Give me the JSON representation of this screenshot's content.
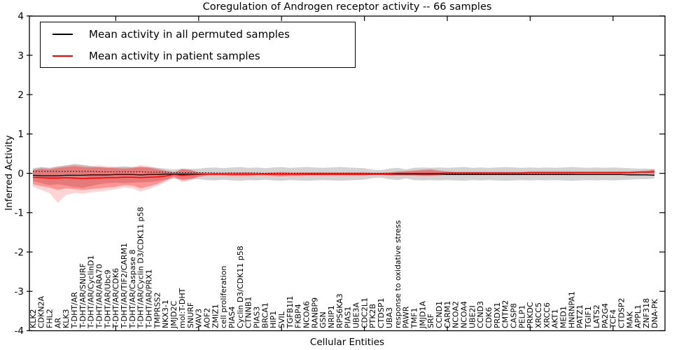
{
  "title": "Coregulation of Androgen receptor activity -- 66 samples",
  "axes": {
    "xlabel": "Cellular Entities",
    "ylabel": "Inferred Activity",
    "ytick_labels": [
      "4",
      "3",
      "2",
      "1",
      "0",
      "-1",
      "-2",
      "-3",
      "-4"
    ],
    "ytick_values": [
      4,
      3,
      2,
      1,
      0,
      -1,
      -2,
      -3,
      -4
    ],
    "ylim": [
      -4,
      4
    ],
    "x_major_tick_every": 10
  },
  "legend": {
    "entries": [
      {
        "label": "Mean activity in all permuted samples",
        "color": "#000000"
      },
      {
        "label": "Mean activity in patient samples",
        "color": "#ff0000"
      }
    ]
  },
  "chart_data": {
    "type": "line",
    "title": "Coregulation of Androgen receptor activity -- 66 samples",
    "xlabel": "Cellular Entities",
    "ylabel": "Inferred Activity",
    "ylim": [
      -4,
      4
    ],
    "grid": false,
    "legend_position": "upper left",
    "n_categories": 76,
    "categories": [
      "KLK2",
      "CDKN2A",
      "FHL2",
      "AR",
      "KLK3",
      "T-DHT/AR",
      "T-DHT/AR/SNURF",
      "T-DHT/AR/CyclinD1",
      "T-DHT/AR/ARA70",
      "T-DHT/AR/Ubc9",
      "T-DHT/AR/CDK6",
      "T-DHT/AR/TIF2/CARM1",
      "T-DHT/AR/Caspase 8",
      "T-DHT/AR/Cyclin D3/CDK11 p58",
      "T-DHT/AR/PRX1",
      "TMPRSS2",
      "NKX3-1",
      "JMJD2C",
      "mol:T-DHT",
      "SNURF",
      "VAV3",
      "AOF2",
      "ZMIZ1",
      "cell proliferation",
      "PIAS4",
      "Cyclin D3/CDK11 p58",
      "CTNNB1",
      "PIAS3",
      "BRCA1",
      "HIP1",
      "SVIL",
      "TGFB1I1",
      "FKBP4",
      "NCOA6",
      "RANBP9",
      "GSN",
      "NRIP1",
      "RPS6KA3",
      "PIAS1",
      "UBE3A",
      "CDC2L1",
      "PTK2B",
      "CTDSP1",
      "UBA3",
      "response to oxidative stress",
      "PAWR",
      "TMF1",
      "JMJD1A",
      "SRF",
      "CCND1",
      "CARM1",
      "NCOA2",
      "NCOA4",
      "UBE2I",
      "CCND3",
      "CDK6",
      "PRDX1",
      "CMTM2",
      "CASP8",
      "PELP1",
      "PRKDC",
      "XRCC5",
      "XRCC6",
      "AKT1",
      "MED1",
      "HNRNPA1",
      "PATZ1",
      "TGIF1",
      "LATS2",
      "PA2G4",
      "TCF4",
      "CTDSP2",
      "MAK",
      "APPL1",
      "ZNF318",
      "DNA-PK"
    ],
    "series": [
      {
        "name": "Mean activity in all permuted samples",
        "color": "#000000",
        "style": "solid",
        "values": [
          -0.05,
          -0.06,
          -0.06,
          -0.06,
          -0.05,
          -0.05,
          -0.05,
          -0.04,
          -0.04,
          -0.04,
          -0.03,
          -0.03,
          -0.03,
          -0.04,
          -0.03,
          -0.03,
          -0.02,
          -0.02,
          -0.02,
          -0.02,
          -0.02,
          -0.02,
          -0.02,
          -0.02,
          -0.02,
          -0.02,
          -0.02,
          -0.02,
          -0.02,
          -0.02,
          -0.02,
          -0.02,
          -0.02,
          -0.02,
          -0.02,
          -0.02,
          -0.02,
          -0.02,
          -0.02,
          -0.02,
          -0.02,
          -0.02,
          -0.02,
          -0.02,
          -0.02,
          -0.02,
          -0.02,
          -0.02,
          -0.02,
          -0.02,
          -0.03,
          -0.03,
          -0.03,
          -0.03,
          -0.03,
          -0.03,
          -0.03,
          -0.03,
          -0.03,
          -0.03,
          -0.03,
          -0.03,
          -0.03,
          -0.03,
          -0.03,
          -0.03,
          -0.03,
          -0.03,
          -0.03,
          -0.03,
          -0.03,
          -0.03,
          -0.04,
          -0.04,
          -0.04,
          -0.05
        ]
      },
      {
        "name": "Zero reference (dotted)",
        "color": "#000000",
        "style": "dotted",
        "values": [
          0.05,
          0.05,
          0.05,
          0.05,
          0.05,
          0.05,
          0.05,
          0.05,
          0.04,
          0.04,
          0.04,
          0.04,
          0.04,
          0.04,
          0.03,
          0.03,
          0.03,
          0.02,
          0.02,
          0.02,
          0.02,
          0.02,
          0.01,
          0.01,
          0.01,
          0.01,
          0.01,
          0.01,
          0.0,
          0.0,
          0.0,
          0.0,
          0.0,
          0.0,
          0.0,
          0.0,
          0.0,
          0.0,
          0.0,
          0.0,
          0.0,
          0.0,
          0.0,
          0.0,
          -0.01,
          -0.01,
          -0.01,
          -0.01,
          -0.01,
          -0.01,
          -0.01,
          -0.01,
          -0.01,
          -0.01,
          -0.01,
          -0.02,
          -0.02,
          -0.02,
          -0.02,
          -0.02,
          -0.02,
          -0.02,
          -0.02,
          -0.02,
          -0.02,
          -0.02,
          -0.03,
          -0.03,
          -0.03,
          -0.03,
          -0.03,
          -0.03,
          -0.03,
          -0.03,
          -0.04,
          -0.04
        ]
      },
      {
        "name": "Permuted samples std band",
        "color": "rgba(130,130,130,0.35)",
        "upper": [
          0.13,
          0.16,
          0.14,
          0.17,
          0.2,
          0.24,
          0.22,
          0.18,
          0.16,
          0.15,
          0.16,
          0.18,
          0.16,
          0.15,
          0.16,
          0.14,
          0.12,
          0.1,
          0.12,
          0.11,
          0.12,
          0.14,
          0.15,
          0.13,
          0.15,
          0.16,
          0.14,
          0.15,
          0.13,
          0.15,
          0.16,
          0.14,
          0.15,
          0.16,
          0.15,
          0.14,
          0.15,
          0.16,
          0.15,
          0.14,
          0.13,
          0.09,
          0.08,
          0.12,
          0.14,
          0.1,
          0.14,
          0.15,
          0.14,
          0.15,
          0.14,
          0.15,
          0.16,
          0.14,
          0.15,
          0.14,
          0.15,
          0.16,
          0.15,
          0.14,
          0.15,
          0.14,
          0.15,
          0.14,
          0.15,
          0.16,
          0.15,
          0.14,
          0.15,
          0.14,
          0.15,
          0.14,
          0.13,
          0.12,
          0.12,
          0.1
        ],
        "lower": [
          -0.2,
          -0.25,
          -0.3,
          -0.28,
          -0.31,
          -0.35,
          -0.37,
          -0.32,
          -0.28,
          -0.25,
          -0.24,
          -0.25,
          -0.24,
          -0.23,
          -0.22,
          -0.2,
          -0.16,
          -0.14,
          -0.15,
          -0.14,
          -0.15,
          -0.17,
          -0.18,
          -0.16,
          -0.18,
          -0.19,
          -0.17,
          -0.18,
          -0.16,
          -0.18,
          -0.19,
          -0.17,
          -0.18,
          -0.19,
          -0.18,
          -0.17,
          -0.18,
          -0.19,
          -0.18,
          -0.17,
          -0.16,
          -0.12,
          -0.11,
          -0.15,
          -0.17,
          -0.13,
          -0.17,
          -0.18,
          -0.17,
          -0.18,
          -0.17,
          -0.18,
          -0.19,
          -0.17,
          -0.18,
          -0.17,
          -0.18,
          -0.19,
          -0.18,
          -0.17,
          -0.18,
          -0.17,
          -0.18,
          -0.17,
          -0.18,
          -0.19,
          -0.18,
          -0.17,
          -0.18,
          -0.17,
          -0.18,
          -0.17,
          -0.16,
          -0.15,
          -0.15,
          -0.13
        ]
      },
      {
        "name": "Mean activity in patient samples",
        "color": "#ff0000",
        "style": "solid",
        "values": [
          -0.1,
          -0.11,
          -0.12,
          -0.12,
          -0.11,
          -0.12,
          -0.13,
          -0.12,
          -0.12,
          -0.11,
          -0.11,
          -0.1,
          -0.1,
          -0.11,
          -0.1,
          -0.09,
          -0.07,
          -0.03,
          -0.05,
          -0.04,
          -0.03,
          -0.02,
          -0.02,
          -0.02,
          -0.02,
          -0.02,
          -0.02,
          -0.02,
          -0.02,
          -0.02,
          -0.02,
          -0.02,
          -0.02,
          -0.01,
          -0.01,
          -0.01,
          -0.01,
          -0.01,
          -0.01,
          -0.01,
          -0.01,
          -0.01,
          -0.01,
          -0.01,
          0.0,
          0.0,
          0.0,
          0.0,
          0.0,
          0.0,
          0.01,
          0.01,
          0.01,
          0.01,
          0.01,
          0.01,
          0.01,
          0.01,
          0.01,
          0.01,
          0.02,
          0.02,
          0.02,
          0.02,
          0.02,
          0.02,
          0.02,
          0.02,
          0.02,
          0.02,
          0.02,
          0.02,
          0.02,
          0.03,
          0.03,
          0.04
        ]
      },
      {
        "name": "Patient samples inner std band",
        "color": "rgba(255,0,0,0.30)",
        "upper": [
          0.08,
          0.12,
          0.1,
          0.14,
          0.16,
          0.18,
          0.16,
          0.15,
          0.16,
          0.14,
          0.13,
          0.12,
          0.13,
          0.17,
          0.14,
          0.1,
          0.06,
          0.02,
          0.1,
          0.08,
          0.02,
          0.01,
          0.01,
          0.01,
          0.02,
          0.02,
          0.02,
          0.01,
          0.01,
          0.02,
          0.03,
          0.02,
          0.02,
          0.02,
          0.02,
          0.02,
          0.02,
          0.02,
          0.02,
          0.02,
          0.02,
          0.01,
          0.01,
          0.02,
          0.04,
          0.05,
          0.06,
          0.08,
          0.09,
          0.06,
          0.04,
          0.03,
          0.03,
          0.03,
          0.03,
          0.03,
          0.03,
          0.03,
          0.03,
          0.03,
          0.04,
          0.04,
          0.04,
          0.04,
          0.04,
          0.04,
          0.04,
          0.04,
          0.04,
          0.04,
          0.04,
          0.04,
          0.04,
          0.05,
          0.06,
          0.09
        ],
        "lower": [
          -0.28,
          -0.32,
          -0.36,
          -0.42,
          -0.38,
          -0.4,
          -0.42,
          -0.4,
          -0.38,
          -0.36,
          -0.34,
          -0.3,
          -0.31,
          -0.38,
          -0.33,
          -0.27,
          -0.18,
          -0.08,
          -0.18,
          -0.15,
          -0.08,
          -0.05,
          -0.05,
          -0.05,
          -0.06,
          -0.06,
          -0.06,
          -0.05,
          -0.05,
          -0.06,
          -0.07,
          -0.06,
          -0.06,
          -0.05,
          -0.05,
          -0.05,
          -0.05,
          -0.05,
          -0.05,
          -0.05,
          -0.05,
          -0.04,
          -0.04,
          -0.05,
          -0.05,
          -0.05,
          -0.05,
          -0.06,
          -0.06,
          -0.05,
          -0.03,
          -0.02,
          -0.02,
          -0.02,
          -0.02,
          -0.02,
          -0.02,
          -0.02,
          -0.02,
          -0.02,
          -0.01,
          -0.01,
          -0.01,
          -0.01,
          -0.01,
          -0.01,
          -0.01,
          -0.01,
          -0.01,
          -0.01,
          -0.01,
          -0.01,
          -0.01,
          0.0,
          0.0,
          -0.01
        ]
      },
      {
        "name": "Patient samples outer band",
        "color": "rgba(255,0,0,0.17)",
        "upper": [
          0.1,
          0.15,
          0.13,
          0.18,
          0.2,
          0.22,
          0.2,
          0.19,
          0.2,
          0.18,
          0.16,
          0.15,
          0.16,
          0.21,
          0.18,
          0.13,
          0.08,
          0.03,
          0.12,
          0.1,
          0.03,
          0.02,
          0.02,
          0.02,
          0.03,
          0.03,
          0.03,
          0.02,
          0.02,
          0.03,
          0.04,
          0.03,
          0.03,
          0.03,
          0.03,
          0.03,
          0.03,
          0.03,
          0.03,
          0.03,
          0.03,
          0.02,
          0.02,
          0.03,
          0.05,
          0.06,
          0.08,
          0.1,
          0.11,
          0.08,
          0.05,
          0.04,
          0.04,
          0.04,
          0.04,
          0.04,
          0.04,
          0.04,
          0.04,
          0.04,
          0.05,
          0.05,
          0.05,
          0.05,
          0.05,
          0.05,
          0.05,
          0.05,
          0.05,
          0.05,
          0.05,
          0.05,
          0.05,
          0.06,
          0.08,
          0.11
        ],
        "lower": [
          -0.34,
          -0.42,
          -0.5,
          -0.75,
          -0.55,
          -0.5,
          -0.52,
          -0.48,
          -0.46,
          -0.44,
          -0.4,
          -0.36,
          -0.38,
          -0.46,
          -0.4,
          -0.32,
          -0.22,
          -0.1,
          -0.22,
          -0.18,
          -0.1,
          -0.06,
          -0.06,
          -0.06,
          -0.07,
          -0.07,
          -0.07,
          -0.06,
          -0.06,
          -0.07,
          -0.08,
          -0.07,
          -0.07,
          -0.06,
          -0.06,
          -0.06,
          -0.06,
          -0.06,
          -0.06,
          -0.06,
          -0.06,
          -0.05,
          -0.05,
          -0.06,
          -0.06,
          -0.06,
          -0.06,
          -0.07,
          -0.07,
          -0.06,
          -0.04,
          -0.03,
          -0.03,
          -0.03,
          -0.03,
          -0.03,
          -0.03,
          -0.03,
          -0.03,
          -0.03,
          -0.02,
          -0.02,
          -0.02,
          -0.02,
          -0.02,
          -0.02,
          -0.02,
          -0.02,
          -0.02,
          -0.02,
          -0.02,
          -0.02,
          -0.02,
          -0.01,
          -0.01,
          -0.02
        ]
      }
    ]
  }
}
